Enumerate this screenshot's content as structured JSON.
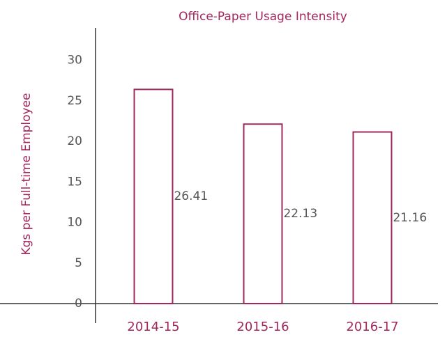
{
  "chart_data": {
    "type": "bar",
    "title": "Office-Paper Usage Intensity",
    "y_label": "Kgs per Full-time Employee",
    "categories": [
      "2014-15",
      "2015-16",
      "2016-17"
    ],
    "values": [
      26.41,
      22.13,
      21.16
    ],
    "color": "#a3265c",
    "ylim": [
      0,
      34
    ],
    "yticks": [
      0,
      5,
      10,
      15,
      20,
      25,
      30
    ],
    "grid": false
  }
}
